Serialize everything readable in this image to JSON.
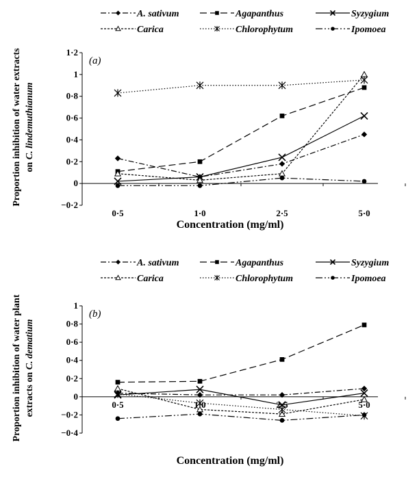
{
  "chart_data": [
    {
      "type": "line",
      "panel_label": "(a)",
      "ylabel": "Proportion inhibition of water extracts on C. lindemuthianum",
      "ylabel_line1": "Proportion inhibition of water extracts",
      "ylabel_line2_prefix": "on ",
      "ylabel_line2_italic": "C. lindemuthianum",
      "xlabel": "Concentration (mg/ml)",
      "categories": [
        "0·5",
        "1·0",
        "2·5",
        "5·0"
      ],
      "ylim": [
        -0.2,
        1.2
      ],
      "yticks": [
        "−0·2",
        "0",
        "0·2",
        "0·4",
        "0·6",
        "0·8",
        "1",
        "1·2"
      ],
      "ytick_values": [
        -0.2,
        0,
        0.2,
        0.4,
        0.6,
        0.8,
        1,
        1.2
      ],
      "series": [
        {
          "name": "A. sativum",
          "values": [
            0.23,
            0.06,
            0.18,
            0.45
          ]
        },
        {
          "name": "Agapanthus",
          "values": [
            0.11,
            0.2,
            0.62,
            0.88
          ]
        },
        {
          "name": "Syzygium",
          "values": [
            0.02,
            0.06,
            0.24,
            0.62
          ]
        },
        {
          "name": "Carica",
          "values": [
            0.09,
            0.03,
            0.09,
            1.0
          ]
        },
        {
          "name": "Chlorophytum",
          "values": [
            0.83,
            0.9,
            0.9,
            0.95
          ]
        },
        {
          "name": "Ipomoea",
          "values": [
            -0.02,
            -0.02,
            0.05,
            0.02
          ]
        }
      ]
    },
    {
      "type": "line",
      "panel_label": "(b)",
      "ylabel": "Proportion inhibition of water plant extracts on C. dematium",
      "ylabel_line1": "Proportion inhibition of water plant",
      "ylabel_line2_prefix": "extracts on ",
      "ylabel_line2_italic": "C. dematium",
      "xlabel": "Concentration (mg/ml)",
      "categories": [
        "0·5",
        "1·0",
        "2·5",
        "5·0"
      ],
      "ylim": [
        -0.4,
        1.0
      ],
      "yticks": [
        "−0·4",
        "−0·2",
        "0",
        "0·2",
        "0·4",
        "0·6",
        "0·8",
        "1"
      ],
      "ytick_values": [
        -0.4,
        -0.2,
        0,
        0.2,
        0.4,
        0.6,
        0.8,
        1
      ],
      "series": [
        {
          "name": "A. sativum",
          "values": [
            0.04,
            0.02,
            0.02,
            0.09
          ]
        },
        {
          "name": "Agapanthus",
          "values": [
            0.16,
            0.17,
            0.41,
            0.79
          ]
        },
        {
          "name": "Syzygium",
          "values": [
            0.02,
            0.08,
            -0.09,
            0.04
          ]
        },
        {
          "name": "Carica",
          "values": [
            0.09,
            -0.14,
            -0.19,
            -0.03
          ]
        },
        {
          "name": "Chlorophytum",
          "values": [
            0.03,
            -0.07,
            -0.14,
            -0.21
          ]
        },
        {
          "name": "Ipomoea",
          "values": [
            -0.24,
            -0.19,
            -0.26,
            -0.2
          ]
        }
      ]
    }
  ],
  "legend_styles": {
    "A. sativum": {
      "marker": "diamond",
      "dash": "8,3,2,3",
      "color": "#000000"
    },
    "Agapanthus": {
      "marker": "square",
      "dash": "10,5",
      "color": "#000000"
    },
    "Syzygium": {
      "marker": "x",
      "dash": "",
      "color": "#000000"
    },
    "Carica": {
      "marker": "triangle",
      "dash": "3,2",
      "color": "#000000"
    },
    "Chlorophytum": {
      "marker": "star",
      "dash": "1.5,2.5",
      "color": "#000000"
    },
    "Ipomoea": {
      "marker": "circle",
      "dash": "10,3,2,3,2,3",
      "color": "#000000"
    }
  }
}
